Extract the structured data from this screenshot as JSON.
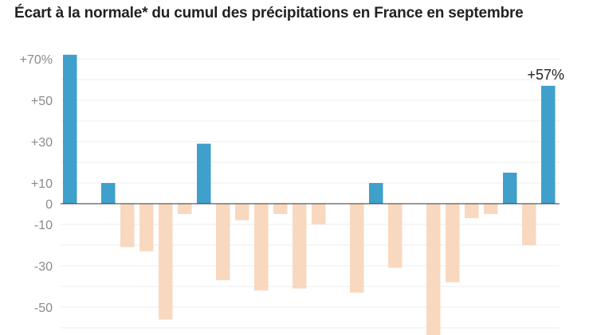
{
  "title": "Écart à la normale* du cumul des précipitations en France en septembre",
  "chart_data": {
    "type": "bar",
    "title": "Écart à la normale* du cumul des précipitations en France en septembre",
    "xlabel": "",
    "ylabel": "",
    "ylim": [
      -63,
      75
    ],
    "grid": true,
    "gridlines": [
      70,
      60,
      50,
      40,
      30,
      20,
      10,
      0,
      -10,
      -20,
      -30,
      -40,
      -50,
      -60
    ],
    "yticks": [
      {
        "value": 70,
        "label": "+70%"
      },
      {
        "value": 50,
        "label": "+50"
      },
      {
        "value": 30,
        "label": "+30"
      },
      {
        "value": 10,
        "label": "+10"
      },
      {
        "value": 0,
        "label": "0"
      },
      {
        "value": -10,
        "label": "-10"
      },
      {
        "value": -30,
        "label": "-30"
      },
      {
        "value": -50,
        "label": "-50"
      }
    ],
    "values": [
      72,
      0,
      10,
      -21,
      -23,
      -56,
      -5,
      29,
      -37,
      -8,
      -42,
      -5,
      -41,
      -10,
      0,
      -43,
      10,
      -31,
      0,
      -64,
      -38,
      -7,
      -5,
      15,
      -20,
      57
    ],
    "annotations": [
      {
        "index": 25,
        "label": "+57%"
      }
    ],
    "colors": {
      "positive": "#3fa0cb",
      "negative": "#f9d8c0",
      "grid": "#ececec",
      "zero_line": "#333333"
    }
  }
}
